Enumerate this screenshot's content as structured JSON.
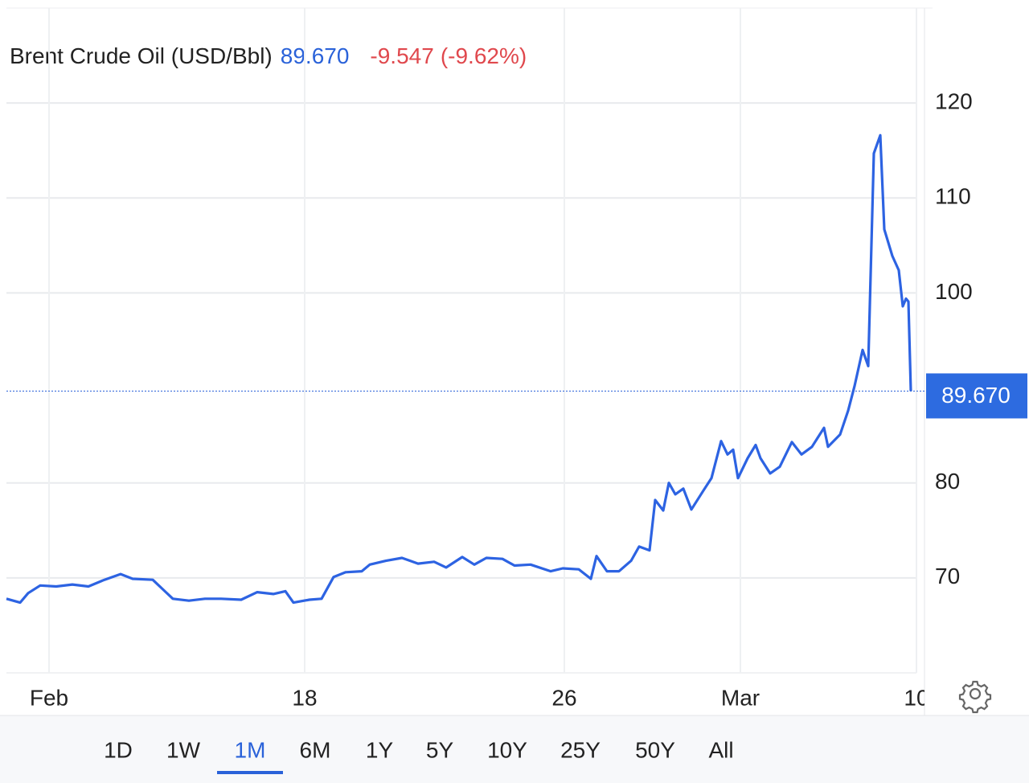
{
  "chart_data": {
    "type": "line",
    "title": "Brent Crude Oil (USD/Bbl)",
    "price": "89.670",
    "change": "-9.547",
    "change_pct": "(-9.62%)",
    "series": [
      {
        "name": "Brent Crude Oil (USD/Bbl)",
        "color": "#2d63e2",
        "x": [
          0,
          1.7,
          2.7,
          4.2,
          6.2,
          8.2,
          10.2,
          12.2,
          14.2,
          15.7,
          18.2,
          19.7,
          20.7,
          22.7,
          24.7,
          26.7,
          29.2,
          31.2,
          33.2,
          34.7,
          35.7,
          37.7,
          39.2,
          40.7,
          42.2,
          44.2,
          45.2,
          47.2,
          49.2,
          51.2,
          53.2,
          54.7,
          56.7,
          58.2,
          59.7,
          61.7,
          63.2,
          65.2,
          67.7,
          69.2,
          71.2,
          72.7,
          73.4,
          74.7,
          76.2,
          77.7,
          78.7,
          80.0,
          80.7,
          81.7,
          82.4,
          83.2,
          84.2,
          85.2,
          86.7,
          87.7,
          88.9,
          89.7,
          90.4,
          91.0,
          92.2,
          93.2,
          93.8,
          95.0,
          96.2,
          97.7,
          98.9,
          100.2,
          101.7,
          102.2,
          103.7,
          104.7,
          105.5,
          106.5,
          107.2,
          107.9,
          108.7,
          109.2,
          110.2,
          111.0,
          111.5,
          111.9,
          112.2,
          112.5
        ],
        "values": [
          67.8,
          67.4,
          68.4,
          69.2,
          69.1,
          69.3,
          69.1,
          69.8,
          70.4,
          69.9,
          69.8,
          68.6,
          67.8,
          67.6,
          67.8,
          67.8,
          67.7,
          68.5,
          68.3,
          68.6,
          67.4,
          67.7,
          67.8,
          70.1,
          70.6,
          70.7,
          71.4,
          71.8,
          72.1,
          71.5,
          71.7,
          71.1,
          72.2,
          71.4,
          72.1,
          72.0,
          71.3,
          71.4,
          70.7,
          71.0,
          70.9,
          69.9,
          72.3,
          70.7,
          70.7,
          71.8,
          73.3,
          72.9,
          78.2,
          77.1,
          80.0,
          78.8,
          79.4,
          77.2,
          79.2,
          80.5,
          84.4,
          83.0,
          83.5,
          80.5,
          82.6,
          84.0,
          82.6,
          81.0,
          81.7,
          84.3,
          83.0,
          83.8,
          85.8,
          83.8,
          85.1,
          87.6,
          90.2,
          94.0,
          92.3,
          114.7,
          116.6,
          106.7,
          103.9,
          102.4,
          98.6,
          99.4,
          99.1,
          89.67
        ]
      }
    ],
    "xlim": [
      0,
      114.2
    ],
    "xticks": [
      {
        "value": 5.3,
        "label": "Feb"
      },
      {
        "value": 37.1,
        "label": "18"
      },
      {
        "value": 69.4,
        "label": "26"
      },
      {
        "value": 91.3,
        "label": "Mar"
      },
      {
        "value": 113.2,
        "label": "10"
      }
    ],
    "ylim": [
      60,
      130
    ],
    "yticks": [
      70,
      80,
      100,
      110,
      120
    ],
    "grid": true,
    "last_value": 89.67
  },
  "range_buttons": [
    "1D",
    "1W",
    "1M",
    "6M",
    "1Y",
    "5Y",
    "10Y",
    "25Y",
    "50Y",
    "All"
  ],
  "active_range": 2
}
